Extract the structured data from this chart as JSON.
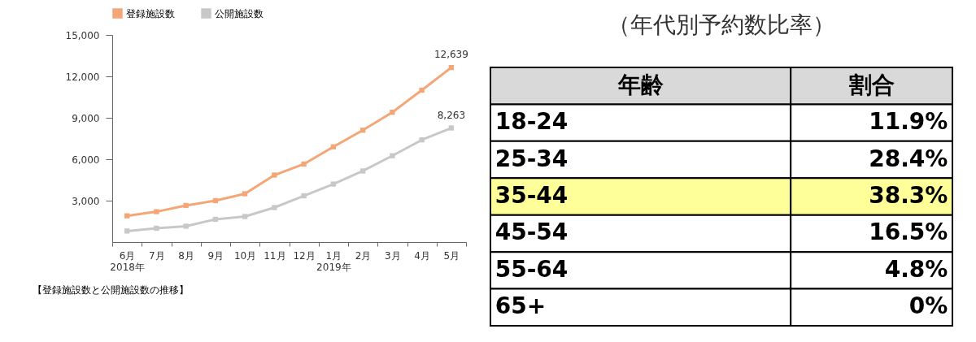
{
  "chart_data": [
    {
      "type": "line",
      "categories": [
        "6月\n2018年",
        "7月",
        "8月",
        "9月",
        "10月",
        "11月",
        "12月",
        "1月\n2019年",
        "2月",
        "3月",
        "4月",
        "5月"
      ],
      "ylim": [
        0,
        15000
      ],
      "yticks": [
        {
          "value": 3000,
          "label": "3,000"
        },
        {
          "value": 6000,
          "label": "6,000"
        },
        {
          "value": 9000,
          "label": "9,000"
        },
        {
          "value": 12000,
          "label": "12,000"
        },
        {
          "value": 15000,
          "label": "15,000"
        }
      ],
      "grid": false,
      "legend": "top",
      "marker": "square",
      "annotations": [
        "【登録施設数と公開施設数の推移】"
      ],
      "series": [
        {
          "name": "登録施設数",
          "color": "#f4a677",
          "values": [
            1900,
            2200,
            2650,
            3000,
            3500,
            4850,
            5650,
            6900,
            8100,
            9400,
            11000,
            12639
          ],
          "value_labels": [
            null,
            null,
            null,
            null,
            null,
            null,
            null,
            null,
            null,
            null,
            null,
            "12,639"
          ]
        },
        {
          "name": "公開施設数",
          "color": "#c8c8c8",
          "values": [
            800,
            1000,
            1150,
            1650,
            1850,
            2500,
            3350,
            4200,
            5150,
            6250,
            7400,
            8263
          ],
          "value_labels": [
            null,
            null,
            null,
            null,
            null,
            null,
            null,
            null,
            null,
            null,
            null,
            "8,263"
          ]
        }
      ]
    },
    {
      "type": "other",
      "title": "（年代別予約数比率）",
      "annotations": [
        "年齢",
        "割合"
      ],
      "categories": [
        "18-24",
        "25-34",
        "35-44",
        "45-54",
        "55-64",
        "65+"
      ],
      "value_labels": [
        "11.9%",
        "28.4%",
        "38.3%",
        "16.5%",
        "4.8%",
        "0%"
      ],
      "colors": [
        "#ffffff",
        "#ffffff",
        "#ffff99",
        "#ffffff",
        "#ffffff",
        "#ffffff"
      ]
    }
  ]
}
